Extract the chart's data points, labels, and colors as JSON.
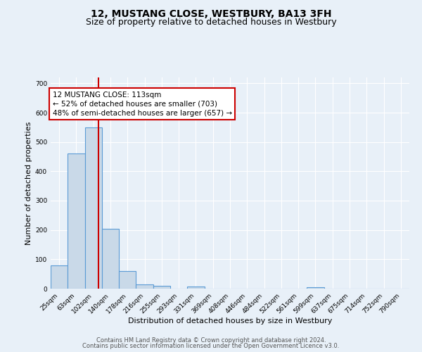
{
  "title": "12, MUSTANG CLOSE, WESTBURY, BA13 3FH",
  "subtitle": "Size of property relative to detached houses in Westbury",
  "xlabel": "Distribution of detached houses by size in Westbury",
  "ylabel": "Number of detached properties",
  "bin_labels": [
    "25sqm",
    "63sqm",
    "102sqm",
    "140sqm",
    "178sqm",
    "216sqm",
    "255sqm",
    "293sqm",
    "331sqm",
    "369sqm",
    "408sqm",
    "446sqm",
    "484sqm",
    "522sqm",
    "561sqm",
    "599sqm",
    "637sqm",
    "675sqm",
    "714sqm",
    "752sqm",
    "790sqm"
  ],
  "bin_edges": [
    25,
    63,
    102,
    140,
    178,
    216,
    255,
    293,
    331,
    369,
    408,
    446,
    484,
    522,
    561,
    599,
    637,
    675,
    714,
    752,
    790
  ],
  "bar_heights": [
    80,
    460,
    550,
    205,
    60,
    15,
    10,
    0,
    8,
    0,
    0,
    0,
    0,
    0,
    0,
    5,
    0,
    0,
    0,
    0,
    0
  ],
  "bar_color": "#c9d9e8",
  "bar_edge_color": "#5b9bd5",
  "property_size": 113,
  "vline_color": "#cc0000",
  "annotation_text": "12 MUSTANG CLOSE: 113sqm\n← 52% of detached houses are smaller (703)\n48% of semi-detached houses are larger (657) →",
  "annotation_box_color": "#ffffff",
  "annotation_box_edge": "#cc0000",
  "ylim": [
    0,
    720
  ],
  "yticks": [
    0,
    100,
    200,
    300,
    400,
    500,
    600,
    700
  ],
  "footer_line1": "Contains HM Land Registry data © Crown copyright and database right 2024.",
  "footer_line2": "Contains public sector information licensed under the Open Government Licence v3.0.",
  "background_color": "#e8f0f8",
  "plot_background": "#e8f0f8",
  "grid_color": "#ffffff",
  "title_fontsize": 10,
  "subtitle_fontsize": 9,
  "axis_label_fontsize": 8,
  "tick_fontsize": 6.5,
  "annotation_fontsize": 7.5,
  "footer_fontsize": 6
}
